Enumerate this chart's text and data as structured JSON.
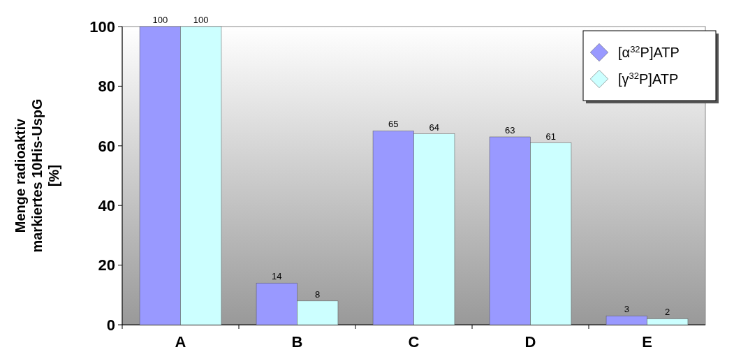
{
  "chart_data": {
    "type": "bar",
    "ylabel": "Menge radioaktiv markiertes 10His-UspG [%]",
    "categories": [
      "A",
      "B",
      "C",
      "D",
      "E"
    ],
    "series": [
      {
        "name": "[α$^{32}$P]ATP",
        "color": "#9999ff",
        "values": [
          100,
          14,
          65,
          63,
          3
        ]
      },
      {
        "name": "[γ$^{32}$P]ATP",
        "color": "#ccffff",
        "values": [
          100,
          8,
          64,
          61,
          2
        ]
      }
    ],
    "ylim": [
      0,
      100
    ],
    "yticks": [
      0,
      20,
      40,
      60,
      80,
      100
    ],
    "data_labels": true,
    "legend": "top right",
    "grid": false
  }
}
